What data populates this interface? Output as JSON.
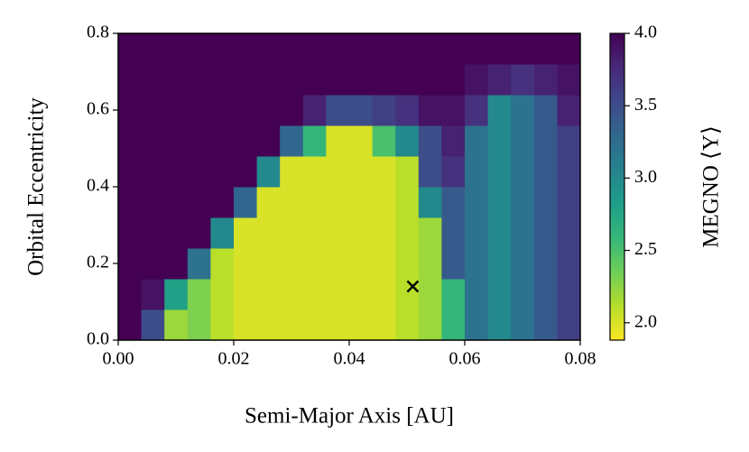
{
  "chart_data": {
    "type": "heatmap",
    "x_label": "Semi-Major Axis [AU]",
    "y_label": "Orbital Eccentricity",
    "colorbar_label": "MEGNO ⟨Y⟩",
    "colormap": "viridis_r",
    "xlim": [
      0,
      0.08
    ],
    "ylim": [
      0,
      0.8
    ],
    "clim": [
      1.88,
      4.0
    ],
    "xticks": [
      {
        "value": 0,
        "label": "0.00"
      },
      0.02,
      0.04,
      0.06,
      0.08
    ],
    "yticks": [
      {
        "value": 0,
        "label": "0.0"
      },
      0.2,
      0.4,
      0.6,
      0.8
    ],
    "cticks": [
      {
        "value": 2,
        "label": "2.0"
      },
      2.5,
      {
        "value": 3,
        "label": "3.0"
      },
      3.5,
      {
        "value": 4,
        "label": "4.0"
      }
    ],
    "x": [
      0.002,
      0.006,
      0.01,
      0.014,
      0.018,
      0.022,
      0.026,
      0.03,
      0.034,
      0.038,
      0.042,
      0.046,
      0.05,
      0.054,
      0.058,
      0.062,
      0.066,
      0.07,
      0.074,
      0.078
    ],
    "y": [
      0.04,
      0.12,
      0.2,
      0.28,
      0.36,
      0.44,
      0.52,
      0.6,
      0.68,
      0.76
    ],
    "z": [
      [
        4,
        3.5,
        2.2,
        2.3,
        2.1,
        2.0,
        2.0,
        2.0,
        2.0,
        2.0,
        2.0,
        2.0,
        2.1,
        2.2,
        2.6,
        3.2,
        3.0,
        3.2,
        3.4,
        3.6
      ],
      [
        4,
        3.9,
        2.8,
        2.3,
        2.1,
        2.0,
        2.0,
        2.0,
        2.0,
        2.0,
        2.0,
        2.0,
        2.1,
        2.2,
        2.6,
        3.2,
        3.0,
        3.2,
        3.4,
        3.6
      ],
      [
        4,
        4,
        4,
        3.2,
        2.1,
        2.0,
        2.0,
        2.0,
        2.0,
        2.0,
        2.0,
        2.0,
        2.1,
        2.2,
        3.4,
        3.2,
        3.0,
        3.2,
        3.4,
        3.6
      ],
      [
        4,
        4,
        4,
        4,
        3.0,
        2.0,
        2.0,
        2.0,
        2.0,
        2.0,
        2.0,
        2.0,
        2.1,
        2.2,
        3.4,
        3.2,
        3.0,
        3.2,
        3.4,
        3.6
      ],
      [
        4,
        4,
        4,
        4,
        4,
        3.3,
        2.0,
        2.0,
        2.0,
        2.0,
        2.0,
        2.0,
        2.1,
        3.0,
        3.4,
        3.2,
        3.0,
        3.2,
        3.4,
        3.6
      ],
      [
        4,
        4,
        4,
        4,
        4,
        4,
        3.0,
        2.0,
        2.0,
        2.0,
        2.0,
        2.0,
        2.1,
        3.5,
        3.7,
        3.2,
        3.0,
        3.2,
        3.4,
        3.6
      ],
      [
        4,
        4,
        4,
        4,
        4,
        4,
        4,
        3.3,
        2.6,
        2.0,
        2.0,
        2.5,
        3.0,
        3.5,
        3.8,
        3.2,
        3.0,
        3.2,
        3.4,
        3.6
      ],
      [
        4,
        4,
        4,
        4,
        4,
        4,
        4,
        4,
        3.8,
        3.5,
        3.5,
        3.6,
        3.7,
        3.9,
        3.9,
        3.7,
        3.0,
        3.2,
        3.4,
        3.8
      ],
      [
        4,
        4,
        4,
        4,
        4,
        4,
        4,
        4,
        4,
        4,
        4,
        4,
        4,
        4,
        4,
        3.9,
        3.8,
        3.7,
        3.8,
        3.9
      ],
      [
        4,
        4,
        4,
        4,
        4,
        4,
        4,
        4,
        4,
        4,
        4,
        4,
        4,
        4,
        4,
        4,
        4,
        4,
        4,
        4
      ]
    ],
    "marker": {
      "x": 0.051,
      "y": 0.14
    }
  }
}
